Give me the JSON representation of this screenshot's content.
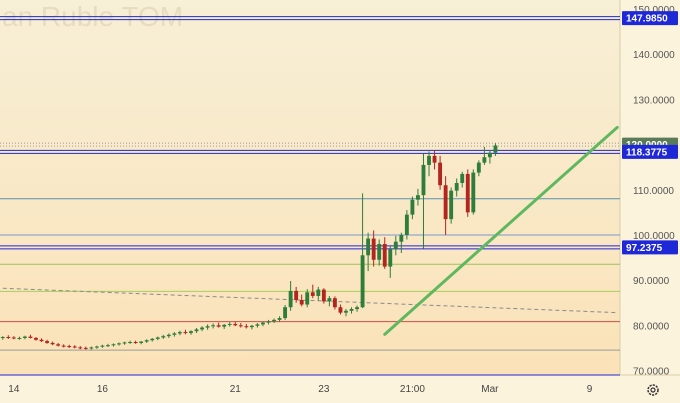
{
  "chart_data": {
    "type": "candlestick",
    "title": "an Ruble TOM",
    "ylim": [
      69,
      152
    ],
    "y_ticks": [
      "150.0000",
      "140.0000",
      "130.0000",
      "120.0000",
      "110.0000",
      "100.0000",
      "90.0000",
      "80.0000",
      "70.0000"
    ],
    "x_ticks": [
      "14",
      "16",
      "21",
      "23",
      "21:00",
      "Mar",
      "9"
    ],
    "x_tick_positions": [
      2,
      18,
      42,
      58,
      74,
      88,
      106
    ],
    "bars_count": 112,
    "candles": [
      [
        77.2,
        77.6,
        76.8,
        77.4
      ],
      [
        77.4,
        77.8,
        77.0,
        77.3
      ],
      [
        77.3,
        77.6,
        76.9,
        77.1
      ],
      [
        77.1,
        77.5,
        76.8,
        77.2
      ],
      [
        77.2,
        77.7,
        76.9,
        77.5
      ],
      [
        77.5,
        77.9,
        77.1,
        77.2
      ],
      [
        77.2,
        77.4,
        76.6,
        76.8
      ],
      [
        76.8,
        77.1,
        76.3,
        76.5
      ],
      [
        76.5,
        76.8,
        75.9,
        76.1
      ],
      [
        76.1,
        76.4,
        75.6,
        75.8
      ],
      [
        75.8,
        76.1,
        75.3,
        75.5
      ],
      [
        75.5,
        75.8,
        75.1,
        75.4
      ],
      [
        75.4,
        75.7,
        75.0,
        75.3
      ],
      [
        75.3,
        75.6,
        74.9,
        75.1
      ],
      [
        75.1,
        75.4,
        74.7,
        75.0
      ],
      [
        75.0,
        75.3,
        74.6,
        74.9
      ],
      [
        74.9,
        75.3,
        74.6,
        75.1
      ],
      [
        75.1,
        75.5,
        74.8,
        75.3
      ],
      [
        75.3,
        75.7,
        75.0,
        75.5
      ],
      [
        75.5,
        75.9,
        75.2,
        75.6
      ],
      [
        75.6,
        76.0,
        75.3,
        75.8
      ],
      [
        75.8,
        76.2,
        75.5,
        76.0
      ],
      [
        76.0,
        76.4,
        75.7,
        76.2
      ],
      [
        76.2,
        76.6,
        75.9,
        76.3
      ],
      [
        76.3,
        76.6,
        75.9,
        76.1
      ],
      [
        76.1,
        76.5,
        75.8,
        76.4
      ],
      [
        76.4,
        76.9,
        76.1,
        76.7
      ],
      [
        76.7,
        77.2,
        76.4,
        77.0
      ],
      [
        77.0,
        77.5,
        76.7,
        77.3
      ],
      [
        77.3,
        77.9,
        77.0,
        77.6
      ],
      [
        77.6,
        78.2,
        77.2,
        77.9
      ],
      [
        77.9,
        78.5,
        77.5,
        78.2
      ],
      [
        78.2,
        78.8,
        77.8,
        78.5
      ],
      [
        78.5,
        79.0,
        78.0,
        78.3
      ],
      [
        78.3,
        78.9,
        77.9,
        78.7
      ],
      [
        78.7,
        79.4,
        78.3,
        79.1
      ],
      [
        79.1,
        79.8,
        78.7,
        79.5
      ],
      [
        79.5,
        80.2,
        79.0,
        79.8
      ],
      [
        79.8,
        80.4,
        79.3,
        80.0
      ],
      [
        80.0,
        80.6,
        79.5,
        79.7
      ],
      [
        79.7,
        80.3,
        79.2,
        80.1
      ],
      [
        80.1,
        80.7,
        79.7,
        80.3
      ],
      [
        80.3,
        80.8,
        79.8,
        80.0
      ],
      [
        80.0,
        80.5,
        79.5,
        79.8
      ],
      [
        79.8,
        80.3,
        79.3,
        79.6
      ],
      [
        79.6,
        80.1,
        79.1,
        79.9
      ],
      [
        79.9,
        80.5,
        79.5,
        80.2
      ],
      [
        80.2,
        80.8,
        79.8,
        80.6
      ],
      [
        80.6,
        81.2,
        80.2,
        80.9
      ],
      [
        80.9,
        81.5,
        80.5,
        81.2
      ],
      [
        81.2,
        82.0,
        80.8,
        81.6
      ],
      [
        81.6,
        84.5,
        81.2,
        84.0
      ],
      [
        84.0,
        89.8,
        83.2,
        87.6
      ],
      [
        87.6,
        88.5,
        85.0,
        85.6
      ],
      [
        85.6,
        86.8,
        84.2,
        84.6
      ],
      [
        84.6,
        88.0,
        84.0,
        87.3
      ],
      [
        87.3,
        89.0,
        86.0,
        86.5
      ],
      [
        86.5,
        88.5,
        85.5,
        87.9
      ],
      [
        87.9,
        88.2,
        84.8,
        85.3
      ],
      [
        85.3,
        86.5,
        84.2,
        86.0
      ],
      [
        86.0,
        86.4,
        83.5,
        84.0
      ],
      [
        84.0,
        84.6,
        82.4,
        82.8
      ],
      [
        82.8,
        83.6,
        82.0,
        83.2
      ],
      [
        83.2,
        84.0,
        82.6,
        83.6
      ],
      [
        83.6,
        84.4,
        83.0,
        84.0
      ],
      [
        84.0,
        109.2,
        83.8,
        95.5
      ],
      [
        95.5,
        100.5,
        92.0,
        99.2
      ],
      [
        99.2,
        101.0,
        93.0,
        94.5
      ],
      [
        94.5,
        99.0,
        93.2,
        98.0
      ],
      [
        98.0,
        99.5,
        92.5,
        93.0
      ],
      [
        93.0,
        97.5,
        90.5,
        96.8
      ],
      [
        96.8,
        99.8,
        95.5,
        98.5
      ],
      [
        98.5,
        100.5,
        96.0,
        100.0
      ],
      [
        100.0,
        105.5,
        99.0,
        104.5
      ],
      [
        104.5,
        108.5,
        103.5,
        107.8
      ],
      [
        107.8,
        110.2,
        106.5,
        108.8
      ],
      [
        108.8,
        118.0,
        97.0,
        115.5
      ],
      [
        115.5,
        118.5,
        113.0,
        117.5
      ],
      [
        117.5,
        118.8,
        114.5,
        116.0
      ],
      [
        116.0,
        117.5,
        110.0,
        111.0
      ],
      [
        111.0,
        113.0,
        100.0,
        103.5
      ],
      [
        103.5,
        110.5,
        102.5,
        109.8
      ],
      [
        109.8,
        112.5,
        108.5,
        111.5
      ],
      [
        111.5,
        114.0,
        110.5,
        113.5
      ],
      [
        113.5,
        114.5,
        104.0,
        105.0
      ],
      [
        105.0,
        114.5,
        104.5,
        113.8
      ],
      [
        113.8,
        116.5,
        113.0,
        116.0
      ],
      [
        116.0,
        119.5,
        115.5,
        117.2
      ],
      [
        117.2,
        118.8,
        115.8,
        118.2
      ],
      [
        118.2,
        120.3,
        117.5,
        119.8
      ]
    ],
    "horizontal_levels": [
      {
        "value": 147.985,
        "color": "#1f28d6",
        "label": "147.9850",
        "badge": true,
        "double": true
      },
      {
        "value": 120.0,
        "color": "#9a9a9a",
        "label": "120.0000",
        "badge": true,
        "badge_color": "#5a7a5a",
        "dotted": true
      },
      {
        "value": 118.3775,
        "color": "#1f28d6",
        "label": "118.3775",
        "badge": true,
        "double": true
      },
      {
        "value": 108.0,
        "color": "#5a8fb0",
        "label": "",
        "badge": false
      },
      {
        "value": 100.0,
        "color": "#7a9ad0",
        "label": "",
        "badge": false
      },
      {
        "value": 97.2375,
        "color": "#1f28d6",
        "label": "97.2375",
        "badge": true,
        "double": true
      },
      {
        "value": 93.5,
        "color": "#9bc35a",
        "label": "",
        "badge": false
      },
      {
        "value": 87.5,
        "color": "#a8cf58",
        "label": "",
        "badge": false
      },
      {
        "value": 80.8,
        "color": "#d64a4a",
        "label": "",
        "badge": false
      },
      {
        "value": 74.5,
        "color": "#9a9a9a",
        "label": "",
        "badge": false
      },
      {
        "value": 69.0,
        "color": "#1f28d6",
        "label": "",
        "badge": false
      }
    ],
    "dashed_trend": {
      "from": [
        0,
        88.2
      ],
      "to": [
        111,
        82.8
      ],
      "color": "#8a8a8a"
    },
    "up_trend": {
      "from": [
        69,
        78.0
      ],
      "to": [
        111,
        123.8
      ],
      "color": "#5fb85f"
    },
    "colors": {
      "up": "#2f7d3a",
      "down": "#b3261e",
      "bg_top": "#f7efd6",
      "bg_bottom": "#fbe2b8",
      "badge_blue": "#1f28d6"
    }
  }
}
